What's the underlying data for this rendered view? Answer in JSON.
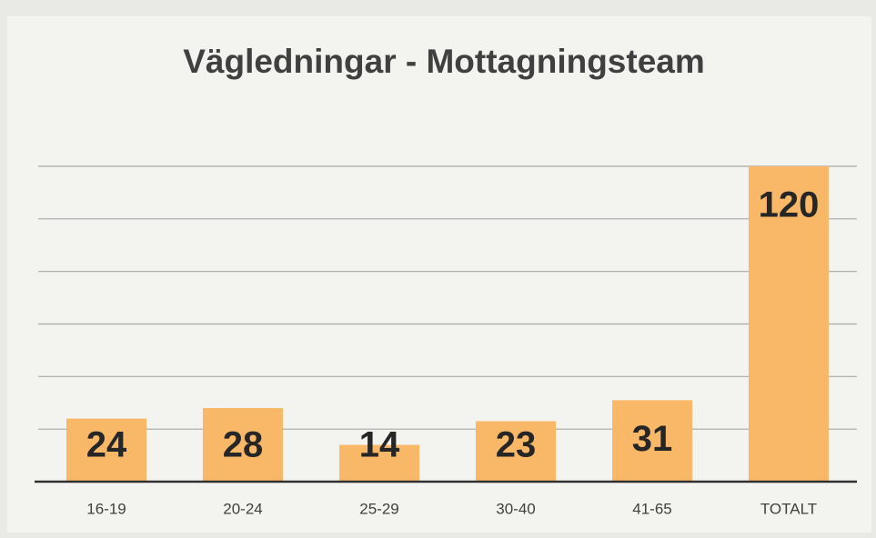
{
  "chart_data": {
    "type": "bar",
    "title": "Vägledningar - Mottagningsteam",
    "categories": [
      "16-19",
      "20-24",
      "25-29",
      "30-40",
      "41-65",
      "TOTALT"
    ],
    "values": [
      24,
      28,
      14,
      23,
      31,
      120
    ],
    "color": "#f8b868",
    "ylim": [
      0,
      120
    ],
    "yticks": [
      0,
      20,
      40,
      60,
      80,
      100,
      120
    ],
    "grid": true
  }
}
